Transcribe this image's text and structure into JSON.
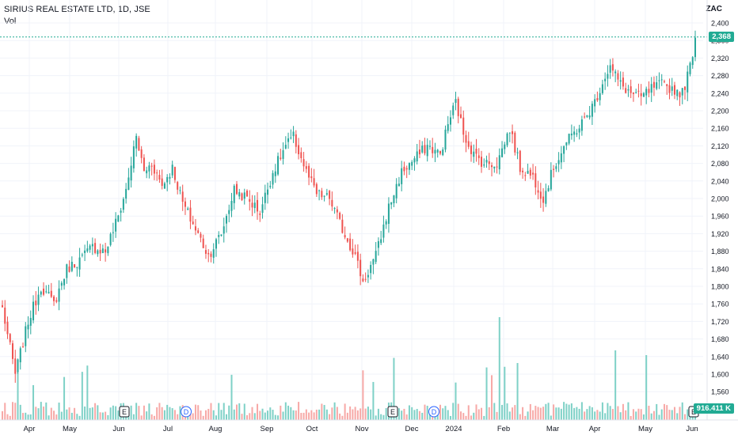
{
  "header": {
    "title": "SIRIUS REAL ESTATE LTD, 1D, JSE",
    "volume_label": "Vol",
    "currency": "ZAC"
  },
  "last_price_label": "2,368",
  "last_volume_label": "916.411 K",
  "colors": {
    "up": "#26a69a",
    "down": "#ef5350",
    "up_vol": "#7fd1c7",
    "down_vol": "#f7a9a7"
  },
  "markers": [
    {
      "label": "E",
      "month": "Jun"
    },
    {
      "label": "D",
      "month": "Jul"
    },
    {
      "label": "E",
      "month": "Dec"
    },
    {
      "label": "D",
      "month": "Dec"
    },
    {
      "label": "E",
      "month": "Jun"
    }
  ],
  "chart_data": {
    "type": "candlestick",
    "title": "SIRIUS REAL ESTATE LTD, 1D, JSE",
    "y_ticks": [
      "2,400",
      "2,360",
      "2,320",
      "2,280",
      "2,240",
      "2,200",
      "2,160",
      "2,120",
      "2,080",
      "2,040",
      "2,000",
      "1,960",
      "1,920",
      "1,880",
      "1,840",
      "1,800",
      "1,760",
      "1,720",
      "1,680",
      "1,640",
      "1,600",
      "1,560"
    ],
    "x_ticks": [
      "Apr",
      "May",
      "Jun",
      "Jul",
      "Aug",
      "Sep",
      "Oct",
      "Nov",
      "Dec",
      "2024",
      "Feb",
      "Mar",
      "Apr",
      "May",
      "Jun"
    ],
    "ylim": [
      1520,
      2430
    ],
    "last_price": 2368,
    "close_anchors": [
      [
        0,
        1750
      ],
      [
        5,
        1600
      ],
      [
        10,
        1720
      ],
      [
        15,
        1800
      ],
      [
        20,
        1760
      ],
      [
        25,
        1840
      ],
      [
        30,
        1860
      ],
      [
        35,
        1890
      ],
      [
        40,
        1880
      ],
      [
        45,
        1960
      ],
      [
        48,
        2020
      ],
      [
        52,
        2140
      ],
      [
        55,
        2060
      ],
      [
        58,
        2080
      ],
      [
        62,
        2030
      ],
      [
        66,
        2070
      ],
      [
        70,
        1990
      ],
      [
        75,
        1930
      ],
      [
        80,
        1870
      ],
      [
        85,
        1920
      ],
      [
        90,
        2020
      ],
      [
        95,
        2000
      ],
      [
        100,
        1970
      ],
      [
        105,
        2060
      ],
      [
        110,
        2120
      ],
      [
        113,
        2140
      ],
      [
        118,
        2060
      ],
      [
        122,
        2010
      ],
      [
        127,
        2000
      ],
      [
        132,
        1930
      ],
      [
        137,
        1870
      ],
      [
        140,
        1810
      ],
      [
        145,
        1870
      ],
      [
        150,
        1980
      ],
      [
        155,
        2060
      ],
      [
        160,
        2090
      ],
      [
        165,
        2120
      ],
      [
        170,
        2100
      ],
      [
        173,
        2170
      ],
      [
        176,
        2220
      ],
      [
        179,
        2150
      ],
      [
        183,
        2100
      ],
      [
        187,
        2080
      ],
      [
        192,
        2080
      ],
      [
        197,
        2160
      ],
      [
        201,
        2070
      ],
      [
        206,
        2050
      ],
      [
        210,
        2000
      ],
      [
        214,
        2070
      ],
      [
        218,
        2120
      ],
      [
        222,
        2150
      ],
      [
        226,
        2180
      ],
      [
        230,
        2220
      ],
      [
        234,
        2280
      ],
      [
        236,
        2300
      ],
      [
        240,
        2260
      ],
      [
        244,
        2240
      ],
      [
        248,
        2230
      ],
      [
        252,
        2250
      ],
      [
        256,
        2260
      ],
      [
        260,
        2250
      ],
      [
        264,
        2240
      ],
      [
        267,
        2300
      ],
      [
        269,
        2368
      ]
    ],
    "n_bars": 270
  }
}
